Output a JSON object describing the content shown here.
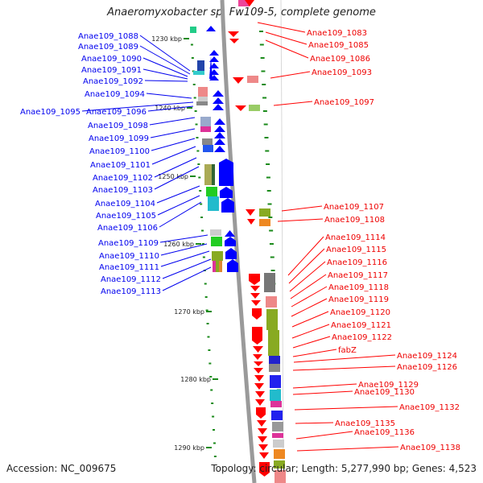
{
  "title": "Anaeromyxobacter sp. Fw109-5, complete genome",
  "footer": {
    "accession": "Accession: NC_009675",
    "summary": "Topology: circular; Length: 5,277,990 bp; Genes: 4,523"
  },
  "kbp_ticks": [
    {
      "label": "1230 kbp",
      "pos": 1230
    },
    {
      "label": "1240 kbp",
      "pos": 1240
    },
    {
      "label": "1250 kbp",
      "pos": 1250
    },
    {
      "label": "1260 kbp",
      "pos": 1260
    },
    {
      "label": "1270 kbp",
      "pos": 1270
    },
    {
      "label": "1280 kbp",
      "pos": 1280
    },
    {
      "label": "1290 kbp",
      "pos": 1290
    }
  ],
  "left_genes": [
    "Anae109_1088",
    "Anae109_1089",
    "Anae109_1090",
    "Anae109_1091",
    "Anae109_1092",
    "Anae109_1094",
    "Anae109_1095",
    "Anae109_1096",
    "Anae109_1098",
    "Anae109_1099",
    "Anae109_1100",
    "Anae109_1101",
    "Anae109_1102",
    "Anae109_1103",
    "Anae109_1104",
    "Anae109_1105",
    "Anae109_1106",
    "Anae109_1109",
    "Anae109_1110",
    "Anae109_1111",
    "Anae109_1112",
    "Anae109_1113"
  ],
  "right_genes": [
    "Anae109_1083",
    "Anae109_1085",
    "Anae109_1086",
    "Anae109_1093",
    "Anae109_1097",
    "Anae109_1107",
    "Anae109_1108",
    "Anae109_1114",
    "Anae109_1115",
    "Anae109_1116",
    "Anae109_1117",
    "Anae109_1118",
    "Anae109_1119",
    "Anae109_1120",
    "Anae109_1121",
    "Anae109_1122",
    "fabZ",
    "Anae109_1124",
    "Anae109_1126",
    "Anae109_1129",
    "Anae109_1130",
    "Anae109_1132",
    "Anae109_1135",
    "Anae109_1136",
    "Anae109_1138"
  ],
  "colors": {
    "forward_strand": "#0000ff",
    "reverse_strand": "#ff0000",
    "left_label": "#0000ee",
    "right_label": "#ee0000",
    "backbone": "#9a9a9a",
    "gc_dots": "#1a8a1a"
  }
}
